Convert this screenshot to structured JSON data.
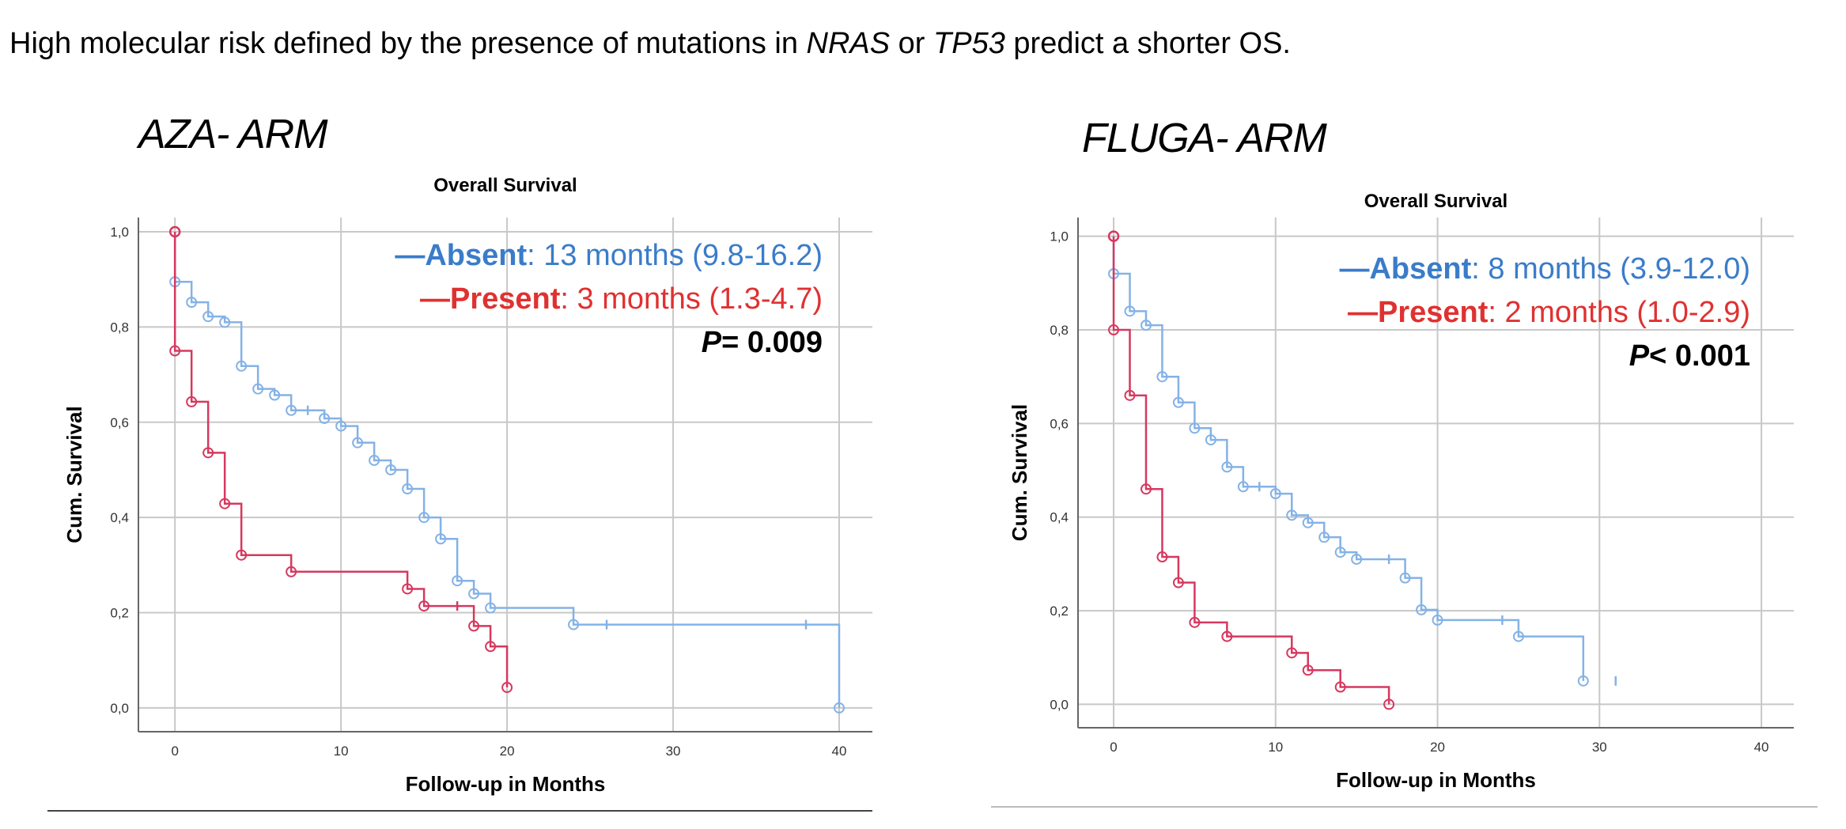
{
  "headline": {
    "part1": "High molecular risk defined by the presence of mutations in ",
    "gene1": "NRAS",
    "part2": " or ",
    "gene2": "TP53",
    "part3": " predict a shorter OS."
  },
  "colors": {
    "absent": "#3a7cc9",
    "absent_line": "#84b2e6",
    "present": "#e03131",
    "present_line": "#d6385f",
    "grid": "#c8c8c8"
  },
  "chart_data": [
    {
      "type": "line",
      "arm_label": "AZA- ARM",
      "title": "Overall Survival",
      "xlabel": "Follow-up in Months",
      "ylabel": "Cum. Survival",
      "xlim": [
        -2.2,
        42
      ],
      "ylim": [
        -0.05,
        1.03
      ],
      "xticks": [
        0,
        10,
        20,
        30,
        40
      ],
      "xtick_labels": [
        "0",
        "10",
        "20",
        "30",
        "40"
      ],
      "yticks": [
        0,
        0.2,
        0.4,
        0.6,
        0.8,
        1.0
      ],
      "ytick_labels": [
        "0,0",
        "0,2",
        "0,4",
        "0,6",
        "0,8",
        "1,0"
      ],
      "grid": true,
      "legend": {
        "absent_name": "Absent",
        "absent_text": ": 13 months (9.8-16.2)",
        "present_name": "Present",
        "present_text": ": 3 months (1.3-4.7)",
        "p_label": "P",
        "p_value": "= 0.009"
      },
      "series": [
        {
          "name": "Absent",
          "steps": [
            [
              0,
              1.0
            ],
            [
              0,
              0.895
            ],
            [
              1,
              0.852
            ],
            [
              2,
              0.822
            ],
            [
              3,
              0.81
            ],
            [
              4,
              0.718
            ],
            [
              5,
              0.67
            ],
            [
              6,
              0.657
            ],
            [
              7,
              0.625
            ],
            [
              9,
              0.608
            ],
            [
              10,
              0.592
            ],
            [
              11,
              0.557
            ],
            [
              12,
              0.52
            ],
            [
              13,
              0.5
            ],
            [
              14,
              0.46
            ],
            [
              15,
              0.4
            ],
            [
              16,
              0.355
            ],
            [
              17,
              0.267
            ],
            [
              18,
              0.24
            ],
            [
              19,
              0.21
            ],
            [
              24,
              0.175
            ],
            [
              40,
              0.0
            ]
          ],
          "events": [
            [
              0,
              0.895
            ],
            [
              1,
              0.852
            ],
            [
              2,
              0.822
            ],
            [
              3,
              0.81
            ],
            [
              4,
              0.718
            ],
            [
              5,
              0.67
            ],
            [
              6,
              0.657
            ],
            [
              7,
              0.625
            ],
            [
              9,
              0.608
            ],
            [
              10,
              0.592
            ],
            [
              11,
              0.557
            ],
            [
              12,
              0.52
            ],
            [
              13,
              0.5
            ],
            [
              14,
              0.46
            ],
            [
              15,
              0.4
            ],
            [
              16,
              0.355
            ],
            [
              17,
              0.267
            ],
            [
              18,
              0.24
            ],
            [
              19,
              0.21
            ],
            [
              24,
              0.175
            ],
            [
              40,
              0.0
            ]
          ],
          "censored": [
            [
              8,
              0.625
            ],
            [
              26,
              0.175
            ],
            [
              38,
              0.175
            ]
          ]
        },
        {
          "name": "Present",
          "steps": [
            [
              0,
              1.0
            ],
            [
              0,
              0.75
            ],
            [
              1,
              0.643
            ],
            [
              2,
              0.536
            ],
            [
              3,
              0.429
            ],
            [
              4,
              0.321
            ],
            [
              7,
              0.286
            ],
            [
              14,
              0.25
            ],
            [
              15,
              0.214
            ],
            [
              18,
              0.172
            ],
            [
              19,
              0.129
            ],
            [
              20,
              0.043
            ]
          ],
          "events": [
            [
              0,
              0.75
            ],
            [
              1,
              0.643
            ],
            [
              2,
              0.536
            ],
            [
              3,
              0.429
            ],
            [
              4,
              0.321
            ],
            [
              7,
              0.286
            ],
            [
              14,
              0.25
            ],
            [
              15,
              0.214
            ],
            [
              18,
              0.172
            ],
            [
              19,
              0.129
            ],
            [
              20,
              0.043
            ]
          ],
          "censored": [
            [
              17,
              0.214
            ]
          ]
        }
      ]
    },
    {
      "type": "line",
      "arm_label": "FLUGA- ARM",
      "title": "Overall Survival",
      "xlabel": "Follow-up in Months",
      "ylabel": "Cum. Survival",
      "xlim": [
        -2.2,
        42
      ],
      "ylim": [
        -0.05,
        1.04
      ],
      "xticks": [
        0,
        10,
        20,
        30,
        40
      ],
      "xtick_labels": [
        "0",
        "10",
        "20",
        "30",
        "40"
      ],
      "yticks": [
        0,
        0.2,
        0.4,
        0.6,
        0.8,
        1.0
      ],
      "ytick_labels": [
        "0,0",
        "0,2",
        "0,4",
        "0,6",
        "0,8",
        "1,0"
      ],
      "grid": true,
      "legend": {
        "absent_name": "Absent",
        "absent_text": ": 8 months (3.9-12.0)",
        "present_name": "Present",
        "present_text": ": 2 months (1.0-2.9)",
        "p_label": "P",
        "p_value": "< 0.001"
      },
      "series": [
        {
          "name": "Absent",
          "steps": [
            [
              0,
              1.0
            ],
            [
              0,
              0.92
            ],
            [
              1,
              0.84
            ],
            [
              2,
              0.81
            ],
            [
              3,
              0.7
            ],
            [
              4,
              0.645
            ],
            [
              5,
              0.59
            ],
            [
              6,
              0.565
            ],
            [
              7,
              0.507
            ],
            [
              8,
              0.465
            ],
            [
              10,
              0.45
            ],
            [
              11,
              0.404
            ],
            [
              12,
              0.388
            ],
            [
              13,
              0.357
            ],
            [
              14,
              0.325
            ],
            [
              15,
              0.31
            ],
            [
              18,
              0.27
            ],
            [
              19,
              0.202
            ],
            [
              20,
              0.18
            ],
            [
              25,
              0.145
            ],
            [
              29,
              0.05
            ]
          ],
          "events": [
            [
              0,
              0.92
            ],
            [
              1,
              0.84
            ],
            [
              2,
              0.81
            ],
            [
              3,
              0.7
            ],
            [
              4,
              0.645
            ],
            [
              5,
              0.59
            ],
            [
              6,
              0.565
            ],
            [
              7,
              0.507
            ],
            [
              8,
              0.465
            ],
            [
              10,
              0.45
            ],
            [
              11,
              0.404
            ],
            [
              12,
              0.388
            ],
            [
              13,
              0.357
            ],
            [
              14,
              0.325
            ],
            [
              15,
              0.31
            ],
            [
              18,
              0.27
            ],
            [
              19,
              0.202
            ],
            [
              20,
              0.18
            ],
            [
              25,
              0.145
            ],
            [
              29,
              0.05
            ]
          ],
          "censored": [
            [
              9,
              0.465
            ],
            [
              17,
              0.31
            ],
            [
              24,
              0.18
            ],
            [
              31,
              0.05
            ]
          ]
        },
        {
          "name": "Present",
          "steps": [
            [
              0,
              1.0
            ],
            [
              0,
              0.8
            ],
            [
              1,
              0.66
            ],
            [
              2,
              0.46
            ],
            [
              3,
              0.315
            ],
            [
              4,
              0.26
            ],
            [
              5,
              0.175
            ],
            [
              7,
              0.145
            ],
            [
              11,
              0.11
            ],
            [
              12,
              0.073
            ],
            [
              14,
              0.037
            ],
            [
              17,
              0.0
            ]
          ],
          "events": [
            [
              0,
              0.8
            ],
            [
              1,
              0.66
            ],
            [
              2,
              0.46
            ],
            [
              3,
              0.315
            ],
            [
              4,
              0.26
            ],
            [
              5,
              0.175
            ],
            [
              7,
              0.145
            ],
            [
              11,
              0.11
            ],
            [
              12,
              0.073
            ],
            [
              14,
              0.037
            ],
            [
              17,
              0.0
            ]
          ],
          "censored": []
        }
      ]
    }
  ]
}
